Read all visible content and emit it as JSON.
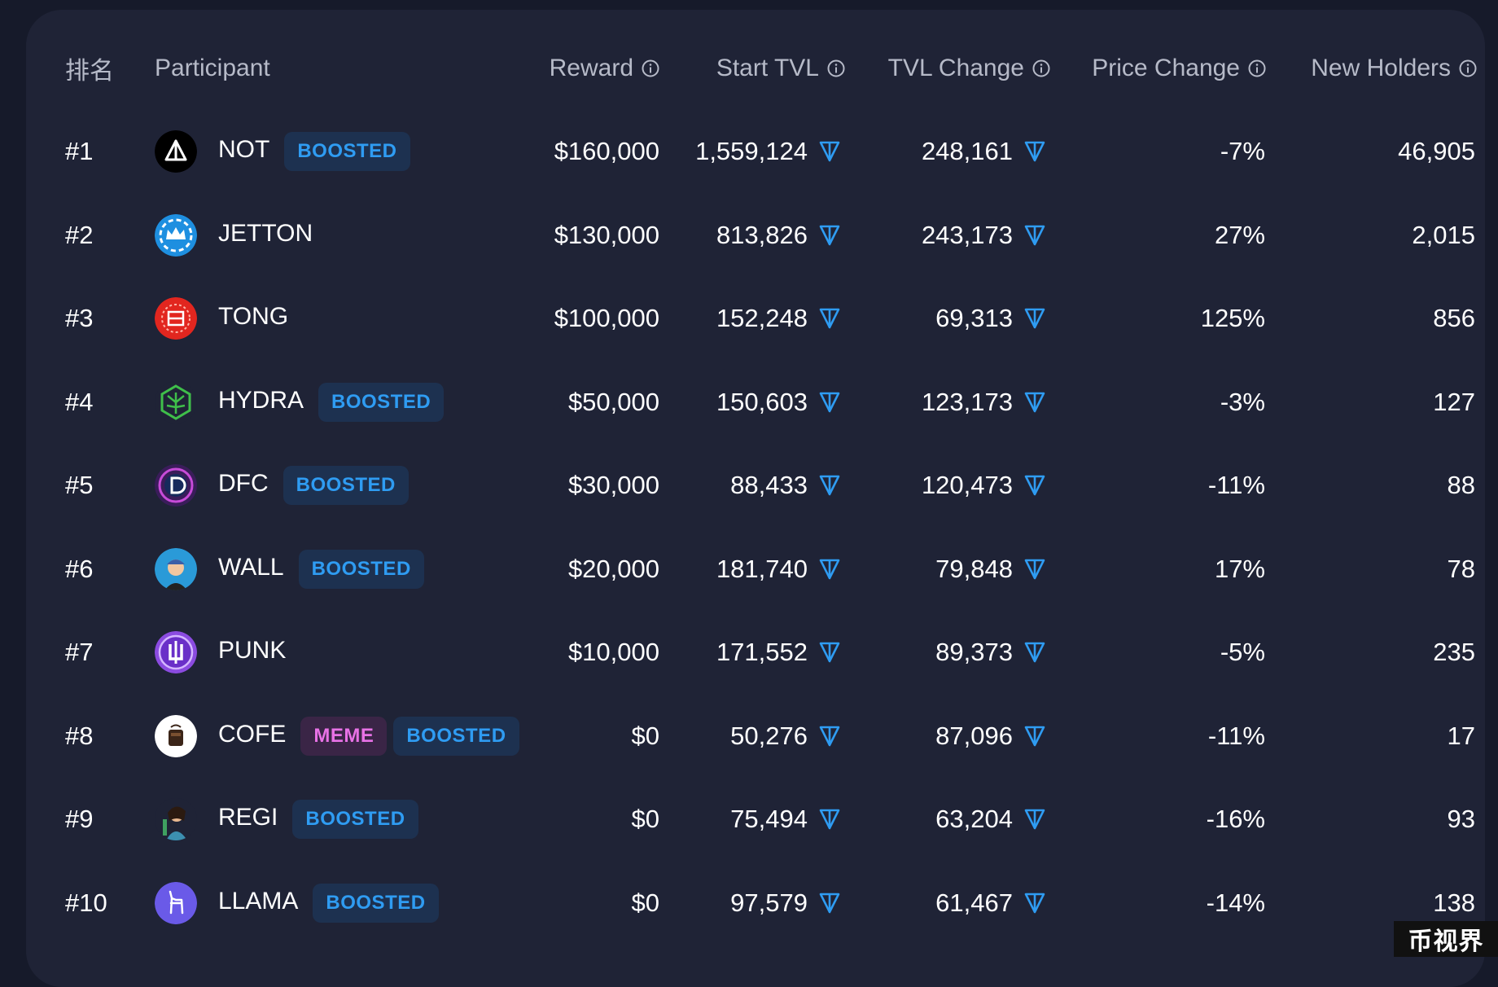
{
  "columns": {
    "rank": "排名",
    "participant": "Participant",
    "reward": "Reward",
    "start_tvl": "Start TVL",
    "tvl_change": "TVL Change",
    "price_change": "Price Change",
    "new_holders": "New Holders"
  },
  "rows": [
    {
      "rank": "#1",
      "name": "NOT",
      "logo": "not-logo-icon",
      "badges": [
        "BOOSTED"
      ],
      "reward": "$160,000",
      "start_tvl": "1,559,124",
      "tvl_change": "248,161",
      "price_change": "-7%",
      "new_holders": "46,905"
    },
    {
      "rank": "#2",
      "name": "JETTON",
      "logo": "jetton-logo-icon",
      "badges": [],
      "reward": "$130,000",
      "start_tvl": "813,826",
      "tvl_change": "243,173",
      "price_change": "27%",
      "new_holders": "2,015"
    },
    {
      "rank": "#3",
      "name": "TONG",
      "logo": "tong-logo-icon",
      "badges": [],
      "reward": "$100,000",
      "start_tvl": "152,248",
      "tvl_change": "69,313",
      "price_change": "125%",
      "new_holders": "856"
    },
    {
      "rank": "#4",
      "name": "HYDRA",
      "logo": "hydra-logo-icon",
      "badges": [
        "BOOSTED"
      ],
      "reward": "$50,000",
      "start_tvl": "150,603",
      "tvl_change": "123,173",
      "price_change": "-3%",
      "new_holders": "127"
    },
    {
      "rank": "#5",
      "name": "DFC",
      "logo": "dfc-logo-icon",
      "badges": [
        "BOOSTED"
      ],
      "reward": "$30,000",
      "start_tvl": "88,433",
      "tvl_change": "120,473",
      "price_change": "-11%",
      "new_holders": "88"
    },
    {
      "rank": "#6",
      "name": "WALL",
      "logo": "wall-logo-icon",
      "badges": [
        "BOOSTED"
      ],
      "reward": "$20,000",
      "start_tvl": "181,740",
      "tvl_change": "79,848",
      "price_change": "17%",
      "new_holders": "78"
    },
    {
      "rank": "#7",
      "name": "PUNK",
      "logo": "punk-logo-icon",
      "badges": [],
      "reward": "$10,000",
      "start_tvl": "171,552",
      "tvl_change": "89,373",
      "price_change": "-5%",
      "new_holders": "235"
    },
    {
      "rank": "#8",
      "name": "COFE",
      "logo": "cofe-logo-icon",
      "badges": [
        "MEME",
        "BOOSTED"
      ],
      "reward": "$0",
      "start_tvl": "50,276",
      "tvl_change": "87,096",
      "price_change": "-11%",
      "new_holders": "17"
    },
    {
      "rank": "#9",
      "name": "REGI",
      "logo": "regi-logo-icon",
      "badges": [
        "BOOSTED"
      ],
      "reward": "$0",
      "start_tvl": "75,494",
      "tvl_change": "63,204",
      "price_change": "-16%",
      "new_holders": "93"
    },
    {
      "rank": "#10",
      "name": "LLAMA",
      "logo": "llama-logo-icon",
      "badges": [
        "BOOSTED"
      ],
      "reward": "$0",
      "start_tvl": "97,579",
      "tvl_change": "61,467",
      "price_change": "-14%",
      "new_holders": "138"
    }
  ],
  "watermark": "币视界",
  "colors": {
    "background": "#161a2a",
    "panel": "#1f2336",
    "boosted_text": "#2f9cf2",
    "boosted_bg": "#1d3150",
    "meme_text": "#e872e6",
    "meme_bg": "#3a2546",
    "ton_icon": "#2f9cf2"
  }
}
